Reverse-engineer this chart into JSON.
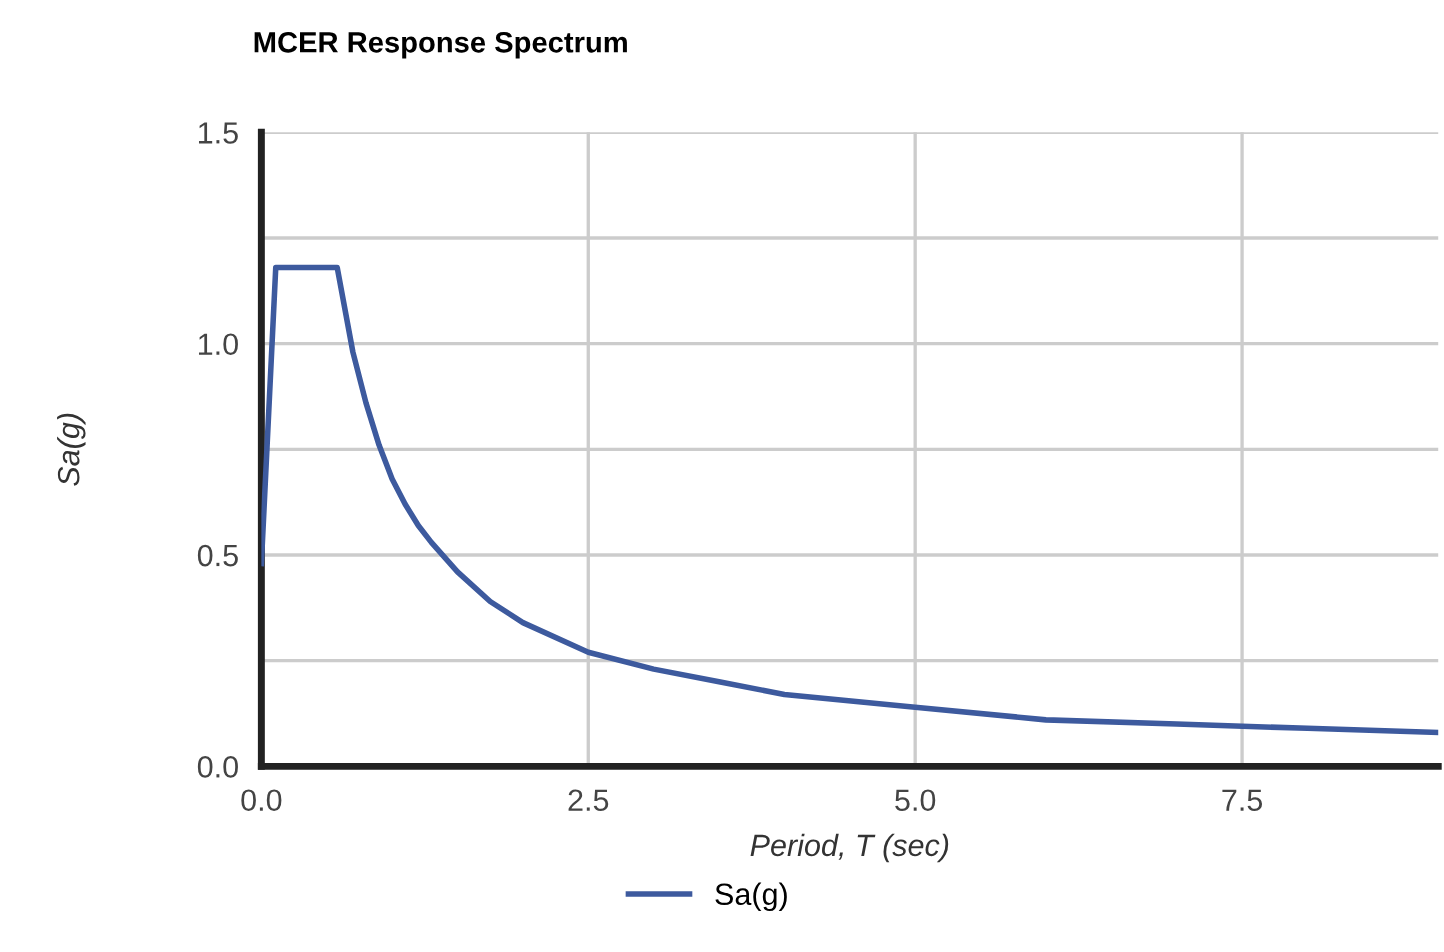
{
  "chart_data": {
    "type": "line",
    "title": "MCER Response Spectrum",
    "xlabel": "Period, T (sec)",
    "ylabel": "Sa(g)",
    "x": [
      0,
      0.11,
      0.58,
      0.7,
      0.8,
      0.9,
      1,
      1.1,
      1.2,
      1.3,
      1.5,
      1.75,
      2,
      2.5,
      3,
      3.5,
      4,
      5,
      6,
      7,
      8,
      9
    ],
    "series": [
      {
        "name": "Sa(g)",
        "color": "#3d5a9e",
        "values": [
          0.48,
          1.18,
          1.18,
          0.98,
          0.86,
          0.76,
          0.68,
          0.62,
          0.57,
          0.53,
          0.46,
          0.39,
          0.34,
          0.27,
          0.23,
          0.2,
          0.17,
          0.14,
          0.11,
          0.1,
          0.09,
          0.08
        ]
      }
    ],
    "xlim": [
      0,
      9
    ],
    "ylim": [
      0,
      1.5
    ],
    "xticks": [
      {
        "value": 0,
        "label": "0.0"
      },
      2.5,
      {
        "value": 5,
        "label": "5.0"
      },
      7.5
    ],
    "yticks": [
      {
        "value": 0,
        "label": "0.0"
      },
      {
        "value": 0.25,
        "label": null
      },
      {
        "value": 0.5,
        "label": "0.5"
      },
      {
        "value": 0.75,
        "label": null
      },
      {
        "value": 1,
        "label": "1.0"
      },
      {
        "value": 1.25,
        "label": null
      },
      1.5
    ],
    "grid": true,
    "legend": "bottom",
    "marker": "none",
    "line_style": "solid"
  }
}
